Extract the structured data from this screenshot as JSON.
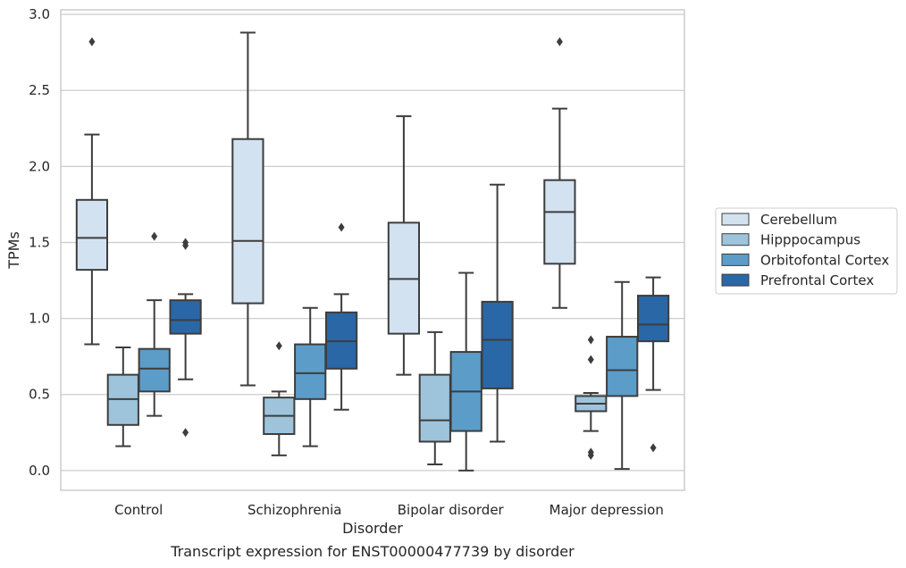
{
  "chart_data": {
    "type": "box",
    "xlabel": "Disorder",
    "ylabel": "TPMs",
    "caption": "Transcript expression for ENST00000477739 by disorder",
    "ylim": [
      -0.13,
      3.03
    ],
    "yticks": [
      0.0,
      0.5,
      1.0,
      1.5,
      2.0,
      2.5,
      3.0
    ],
    "ytick_labels": [
      "0.0",
      "0.5",
      "1.0",
      "1.5",
      "2.0",
      "2.5",
      "3.0"
    ],
    "grid": "horizontal",
    "legend_position": "right",
    "categories": [
      "Control",
      "Schizophrenia",
      "Bipolar disorder",
      "Major depression"
    ],
    "series": [
      {
        "name": "Cerebellum",
        "color": "#d3e2f1",
        "boxes": [
          {
            "whisker_low": 0.83,
            "q1": 1.32,
            "median": 1.53,
            "q3": 1.78,
            "whisker_high": 2.21,
            "outliers": [
              2.82
            ]
          },
          {
            "whisker_low": 0.56,
            "q1": 1.1,
            "median": 1.51,
            "q3": 2.18,
            "whisker_high": 2.88,
            "outliers": []
          },
          {
            "whisker_low": 0.63,
            "q1": 0.9,
            "median": 1.26,
            "q3": 1.63,
            "whisker_high": 2.33,
            "outliers": []
          },
          {
            "whisker_low": 1.07,
            "q1": 1.36,
            "median": 1.7,
            "q3": 1.91,
            "whisker_high": 2.38,
            "outliers": [
              2.82
            ]
          }
        ]
      },
      {
        "name": "Hipppocampus",
        "color": "#9ec4dc",
        "boxes": [
          {
            "whisker_low": 0.16,
            "q1": 0.3,
            "median": 0.47,
            "q3": 0.63,
            "whisker_high": 0.81,
            "outliers": []
          },
          {
            "whisker_low": 0.1,
            "q1": 0.24,
            "median": 0.36,
            "q3": 0.48,
            "whisker_high": 0.52,
            "outliers": [
              0.82
            ]
          },
          {
            "whisker_low": 0.04,
            "q1": 0.19,
            "median": 0.33,
            "q3": 0.63,
            "whisker_high": 0.91,
            "outliers": []
          },
          {
            "whisker_low": 0.26,
            "q1": 0.39,
            "median": 0.44,
            "q3": 0.49,
            "whisker_high": 0.51,
            "outliers": [
              0.86,
              0.73,
              0.12,
              0.1
            ]
          }
        ]
      },
      {
        "name": "Orbitofontal Cortex",
        "color": "#5c9cc9",
        "boxes": [
          {
            "whisker_low": 0.36,
            "q1": 0.52,
            "median": 0.67,
            "q3": 0.8,
            "whisker_high": 1.12,
            "outliers": [
              1.54
            ]
          },
          {
            "whisker_low": 0.16,
            "q1": 0.47,
            "median": 0.64,
            "q3": 0.83,
            "whisker_high": 1.07,
            "outliers": []
          },
          {
            "whisker_low": 0.0,
            "q1": 0.26,
            "median": 0.52,
            "q3": 0.78,
            "whisker_high": 1.3,
            "outliers": []
          },
          {
            "whisker_low": 0.01,
            "q1": 0.49,
            "median": 0.66,
            "q3": 0.88,
            "whisker_high": 1.24,
            "outliers": []
          }
        ]
      },
      {
        "name": "Prefrontal Cortex",
        "color": "#2a67a6",
        "boxes": [
          {
            "whisker_low": 0.6,
            "q1": 0.9,
            "median": 0.99,
            "q3": 1.12,
            "whisker_high": 1.16,
            "outliers": [
              1.5,
              1.48,
              0.25
            ]
          },
          {
            "whisker_low": 0.4,
            "q1": 0.67,
            "median": 0.85,
            "q3": 1.04,
            "whisker_high": 1.16,
            "outliers": [
              1.6
            ]
          },
          {
            "whisker_low": 0.19,
            "q1": 0.54,
            "median": 0.86,
            "q3": 1.11,
            "whisker_high": 1.88,
            "outliers": []
          },
          {
            "whisker_low": 0.53,
            "q1": 0.85,
            "median": 0.96,
            "q3": 1.15,
            "whisker_high": 1.27,
            "outliers": [
              0.15
            ]
          }
        ]
      }
    ]
  }
}
